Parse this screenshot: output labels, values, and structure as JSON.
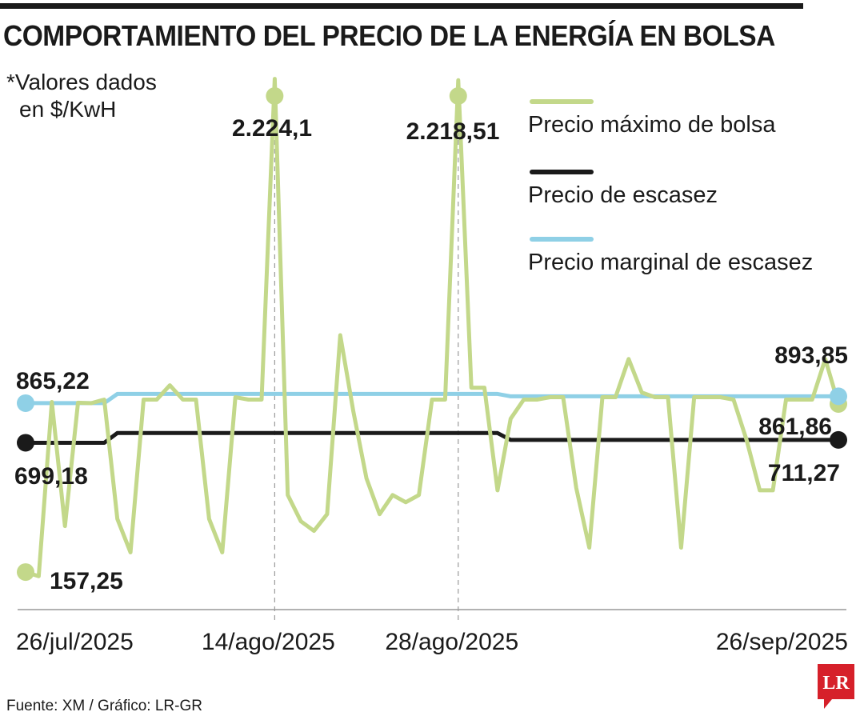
{
  "header": {
    "title": "COMPORTAMIENTO DEL PRECIO DE LA ENERGÍA EN BOLSA",
    "note_line1": "*Valores dados",
    "note_line2": "en $/KwH"
  },
  "footer": {
    "source": "Fuente: XM / Gráfico: LR-GR",
    "logo_text": "LR"
  },
  "colors": {
    "max": "#c3d88a",
    "escasez": "#1a1a1a",
    "marginal": "#8fd0e6",
    "logo": "#d6202a"
  },
  "chart_data": {
    "type": "line",
    "title": "COMPORTAMIENTO DEL PRECIO DE LA ENERGÍA EN BOLSA",
    "unit_note": "*Valores dados en $/KwH",
    "x_start": "26/jul/2025",
    "x_end": "26/sep/2025",
    "x_ticks": [
      {
        "date": "26/jul/2025",
        "label": "26/jul/2025"
      },
      {
        "date": "14/ago/2025",
        "label": "14/ago/2025"
      },
      {
        "date": "28/ago/2025",
        "label": "28/ago/2025"
      },
      {
        "date": "26/sep/2025",
        "label": "26/sep/2025"
      }
    ],
    "ylim": [
      0,
      2300
    ],
    "legend_position": "top-right",
    "grid": false,
    "series": [
      {
        "name": "Precio máximo de bolsa",
        "color": "#c3d88a",
        "values": [
          157.25,
          140,
          870,
          350,
          867,
          865,
          880,
          380,
          240,
          880,
          880,
          940,
          880,
          880,
          380,
          240,
          890,
          880,
          880,
          2224.1,
          480,
          370,
          330,
          400,
          1150,
          830,
          550,
          400,
          480,
          450,
          480,
          880,
          880,
          2218.51,
          930,
          930,
          500,
          800,
          880,
          880,
          890,
          890,
          510,
          260,
          890,
          890,
          1050,
          910,
          890,
          890,
          260,
          890,
          890,
          890,
          880,
          710,
          500,
          500,
          880,
          880,
          880,
          1050,
          861.86
        ]
      },
      {
        "name": "Precio de escasez",
        "color": "#1a1a1a",
        "values": [
          699.18,
          699.18,
          699.18,
          699.18,
          699.18,
          699.18,
          699.18,
          740,
          740,
          740,
          740,
          740,
          740,
          740,
          740,
          740,
          740,
          740,
          740,
          740,
          740,
          740,
          740,
          740,
          740,
          740,
          740,
          740,
          740,
          740,
          740,
          740,
          740,
          740,
          740,
          740,
          740,
          711.27,
          711.27,
          711.27,
          711.27,
          711.27,
          711.27,
          711.27,
          711.27,
          711.27,
          711.27,
          711.27,
          711.27,
          711.27,
          711.27,
          711.27,
          711.27,
          711.27,
          711.27,
          711.27,
          711.27,
          711.27,
          711.27,
          711.27,
          711.27,
          711.27,
          711.27
        ]
      },
      {
        "name": "Precio marginal de escasez",
        "color": "#8fd0e6",
        "values": [
          865.22,
          865.22,
          865.22,
          865.22,
          865.22,
          865.22,
          865.22,
          904,
          904,
          904,
          904,
          904,
          904,
          904,
          904,
          904,
          904,
          904,
          904,
          904,
          904,
          904,
          904,
          904,
          904,
          904,
          904,
          904,
          904,
          904,
          904,
          904,
          904,
          904,
          904,
          904,
          904,
          893.85,
          893.85,
          893.85,
          893.85,
          893.85,
          893.85,
          893.85,
          893.85,
          893.85,
          893.85,
          893.85,
          893.85,
          893.85,
          893.85,
          893.85,
          893.85,
          893.85,
          893.85,
          893.85,
          893.85,
          893.85,
          893.85,
          893.85,
          893.85,
          893.85,
          893.85
        ]
      }
    ],
    "annotations": [
      {
        "label": "2.224,1",
        "series": 0,
        "index": 19
      },
      {
        "label": "2.218,51",
        "series": 0,
        "index": 33
      },
      {
        "label": "157,25",
        "series": 0,
        "index": 0
      },
      {
        "label": "861,86",
        "series": 0,
        "index": 62
      },
      {
        "label": "865,22",
        "series": 2,
        "index": 0
      },
      {
        "label": "893,85",
        "series": 2,
        "index": 62
      },
      {
        "label": "699,18",
        "series": 1,
        "index": 0
      },
      {
        "label": "711,27",
        "series": 1,
        "index": 62
      }
    ]
  }
}
